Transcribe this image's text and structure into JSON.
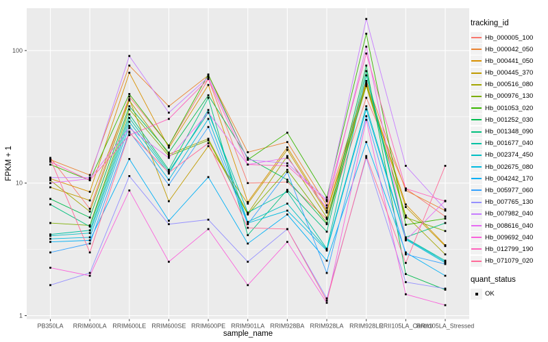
{
  "chart_data": {
    "type": "line",
    "xlabel": "sample_name",
    "ylabel": "FPKM + 1",
    "y_scale": "log10",
    "grid": true,
    "panel_bg": "#EBEBEB",
    "grid_color": "#FFFFFF",
    "tick_color": "#333333",
    "tick_label_color": "#4D4D4D",
    "point_color": "#000000",
    "point_shape": "square",
    "y_ticks": [
      1,
      10,
      100
    ],
    "y_tick_labels": [
      "1",
      "10",
      "100"
    ],
    "y_minor_ticks": [
      3.162,
      31.62
    ],
    "ylim": [
      0.93,
      210
    ],
    "legend_title": "tracking_id",
    "legend2": {
      "title": "quant_status",
      "items": [
        {
          "label": "OK"
        }
      ]
    },
    "categories": [
      "PB350LA",
      "RRIM600LA",
      "RRIM600LE",
      "RRIM600SE",
      "RRIM600PE",
      "RRIM901LA",
      "RRIM928BA",
      "RRIM928LA",
      "RRIM928LE",
      "RRII105LA_Control",
      "RRII105LA_Stressed"
    ],
    "series": [
      {
        "name": "Hb_000005_100",
        "color": "#F8766D",
        "values": [
          15.5,
          6.4,
          45,
          19.2,
          61,
          10,
          10.2,
          5.35,
          44,
          9.1,
          5.6
        ]
      },
      {
        "name": "Hb_000042_050",
        "color": "#EA8331",
        "values": [
          15.0,
          11.5,
          77,
          38,
          65,
          17.1,
          20.4,
          6.8,
          59,
          8.8,
          6.2
        ]
      },
      {
        "name": "Hb_000441_050",
        "color": "#D89000",
        "values": [
          10.8,
          8.6,
          68,
          18.5,
          55,
          7.2,
          18.6,
          6.2,
          57,
          6.9,
          3.4
        ]
      },
      {
        "name": "Hb_000445_370",
        "color": "#C09B00",
        "values": [
          9.3,
          7.4,
          43,
          7.3,
          19,
          7.0,
          17.8,
          6.0,
          55,
          6.6,
          3.35
        ]
      },
      {
        "name": "Hb_000516_080",
        "color": "#A3A500",
        "values": [
          10.5,
          6.1,
          42,
          16.5,
          21.6,
          5.9,
          16.0,
          5.5,
          54,
          5.7,
          2.9
        ]
      },
      {
        "name": "Hb_000976_130",
        "color": "#7CAE00",
        "values": [
          5.0,
          4.8,
          36,
          16.0,
          21,
          5.8,
          12.6,
          5.0,
          56,
          5.5,
          4.35
        ]
      },
      {
        "name": "Hb_001053_020",
        "color": "#39B600",
        "values": [
          13.8,
          10.5,
          47,
          19.2,
          66,
          15.0,
          24,
          7.8,
          134,
          4.85,
          5.4
        ]
      },
      {
        "name": "Hb_001252_030",
        "color": "#00BB4E",
        "values": [
          7.6,
          5.5,
          38,
          17.0,
          46,
          15.5,
          10.6,
          4.9,
          77,
          2.06,
          1.57
        ]
      },
      {
        "name": "Hb_001348_090",
        "color": "#00BF7D",
        "values": [
          6.9,
          4.7,
          33,
          12.6,
          44,
          4.05,
          8.9,
          4.3,
          70,
          3.9,
          5.0
        ]
      },
      {
        "name": "Hb_001677_040",
        "color": "#00C1A3",
        "values": [
          4.1,
          4.4,
          31,
          12.2,
          34,
          6.0,
          8.6,
          3.2,
          65,
          3.85,
          2.6
        ]
      },
      {
        "name": "Hb_002374_450",
        "color": "#00BFC4",
        "values": [
          4.0,
          4.2,
          29,
          11.8,
          35.6,
          5.1,
          7.0,
          3.15,
          38,
          3.8,
          2.55
        ]
      },
      {
        "name": "Hb_002675_080",
        "color": "#00BAE0",
        "values": [
          3.8,
          3.9,
          27,
          10.6,
          30.5,
          5.0,
          6.2,
          3.1,
          36,
          3.75,
          2.5
        ]
      },
      {
        "name": "Hb_004242_170",
        "color": "#00B0F6",
        "values": [
          3.6,
          3.7,
          15.2,
          5.2,
          11.1,
          3.5,
          5.8,
          2.6,
          20.4,
          3.0,
          2.0
        ]
      },
      {
        "name": "Hb_005977_060",
        "color": "#35A2FF",
        "values": [
          3.0,
          3.5,
          24.5,
          9.7,
          26.5,
          4.9,
          12.1,
          2.1,
          32,
          2.9,
          2.45
        ]
      },
      {
        "name": "Hb_007765_130",
        "color": "#9590FF",
        "values": [
          1.7,
          2.1,
          11.3,
          4.9,
          5.3,
          2.55,
          4.5,
          1.35,
          15.5,
          1.79,
          1.6
        ]
      },
      {
        "name": "Hb_007982_040",
        "color": "#C77CFF",
        "values": [
          11.0,
          11.0,
          91,
          34,
          63,
          15.0,
          14.1,
          7.5,
          173,
          13.5,
          6.35
        ]
      },
      {
        "name": "Hb_008616_040",
        "color": "#E76BF3",
        "values": [
          10.0,
          10.8,
          26,
          15.5,
          34,
          13.8,
          15.5,
          6.5,
          107,
          3.7,
          7.35
        ]
      },
      {
        "name": "Hb_009692_040",
        "color": "#FA62DB",
        "values": [
          2.3,
          2.0,
          8.8,
          2.55,
          4.5,
          1.7,
          3.6,
          1.25,
          30,
          1.45,
          1.2
        ]
      },
      {
        "name": "Hb_012799_190",
        "color": "#FF62BC",
        "values": [
          14.5,
          10.5,
          23,
          30.5,
          61,
          13.8,
          13.5,
          7.3,
          95,
          9.1,
          7.3
        ]
      },
      {
        "name": "Hb_071079_020",
        "color": "#FF6A98",
        "values": [
          15.2,
          3.0,
          24,
          12.0,
          20,
          4.6,
          4.5,
          1.3,
          16,
          2.5,
          13.5
        ]
      }
    ]
  }
}
